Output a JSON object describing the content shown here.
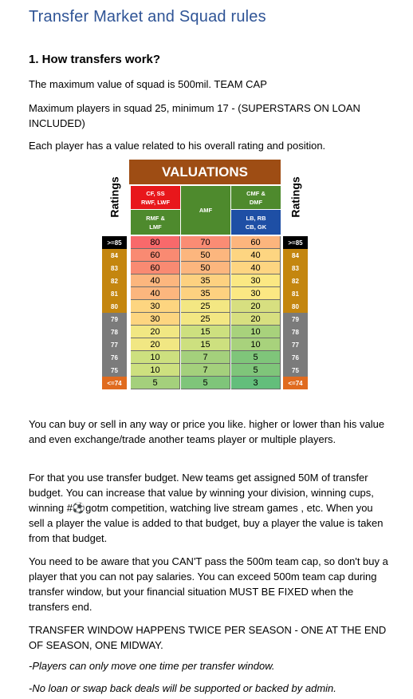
{
  "doc_title": "Transfer  Market and Squad rules",
  "section_heading": "1. How transfers work?",
  "paragraphs": {
    "cap": "The maximum value of squad is 500mil. TEAM CAP",
    "players": "Maximum players in squad 25,  minimum 17 - (SUPERSTARS ON LOAN INCLUDED)",
    "value_intro": "Each player has a value related to his overall rating and position.",
    "buy_sell": "You can buy or sell in any way or price you like. higher or lower than his value and even exchange/trade another teams player or multiple players.",
    "budget": "For that you use transfer budget. New teams get assigned 50M of transfer budget. You can increase that value by winning your division, winning cups, winning #⚽gotm competition,  watching live stream games , etc. When you sell a player the value is added to that budget, buy a player the value is taken from that budget.",
    "aware": "You need to be aware that you CAN'T pass the 500m  team cap, so don't buy a player that you can not pay salaries. You can exceed 500m team cap during transfer window, but your financial situation MUST BE FIXED when the transfers end.",
    "window": "TRANSFER WINDOW  HAPPENS TWICE PER SEASON - ONE AT THE END OF SEASON, ONE MIDWAY.",
    "once": "-Players can only move one time per transfer window.",
    "no_loan": "-No loan or swap back deals will be supported or backed by admin."
  },
  "valuations": {
    "title": "VALUATIONS",
    "ratings_label_left": "Ratings",
    "ratings_label_right": "Ratings",
    "col1_top": "CF, SS\nRWF, LWF",
    "col1_bottom": "RMF &\nLMF",
    "col2": "AMF",
    "col3_top": "CMF &\nDMF",
    "col3_bottom": "LB, RB\nCB, GK",
    "colors": {
      "band": "#9e4d14",
      "fwd": "#e8171b",
      "mid": "#4e8a2d",
      "def": "#1e4fa5"
    },
    "rows": [
      {
        "label": ">=85",
        "v1": "80",
        "v2": "70",
        "v3": "60",
        "label_bg": "#000000"
      },
      {
        "label": "84",
        "v1": "60",
        "v2": "50",
        "v3": "40",
        "label_bg": "#c4860f"
      },
      {
        "label": "83",
        "v1": "60",
        "v2": "50",
        "v3": "40",
        "label_bg": "#c4860f"
      },
      {
        "label": "82",
        "v1": "40",
        "v2": "35",
        "v3": "30",
        "label_bg": "#c4860f"
      },
      {
        "label": "81",
        "v1": "40",
        "v2": "35",
        "v3": "30",
        "label_bg": "#c4860f"
      },
      {
        "label": "80",
        "v1": "30",
        "v2": "25",
        "v3": "20",
        "label_bg": "#c4860f"
      },
      {
        "label": "79",
        "v1": "30",
        "v2": "25",
        "v3": "20",
        "label_bg": "#7b7b7b"
      },
      {
        "label": "78",
        "v1": "20",
        "v2": "15",
        "v3": "10",
        "label_bg": "#7b7b7b"
      },
      {
        "label": "77",
        "v1": "20",
        "v2": "15",
        "v3": "10",
        "label_bg": "#7b7b7b"
      },
      {
        "label": "76",
        "v1": "10",
        "v2": "7",
        "v3": "5",
        "label_bg": "#7b7b7b"
      },
      {
        "label": "75",
        "v1": "10",
        "v2": "7",
        "v3": "5",
        "label_bg": "#7b7b7b"
      },
      {
        "label": "<=74",
        "v1": "5",
        "v2": "5",
        "v3": "3",
        "label_bg": "#e06b1f"
      }
    ],
    "value_colors": [
      [
        "#f8696b",
        "#fa8c74",
        "#fcb57d"
      ],
      [
        "#f98a72",
        "#fcb67e",
        "#fdd581"
      ],
      [
        "#f98a72",
        "#fcb67e",
        "#fdd581"
      ],
      [
        "#fcb67e",
        "#fdd180",
        "#fbe883"
      ],
      [
        "#fcb67e",
        "#fdd180",
        "#fbe883"
      ],
      [
        "#fdd580",
        "#f3e783",
        "#d7df80"
      ],
      [
        "#fdd580",
        "#f3e783",
        "#d7df80"
      ],
      [
        "#f1e783",
        "#cde07f",
        "#a8d27c"
      ],
      [
        "#f1e783",
        "#cde07f",
        "#a8d27c"
      ],
      [
        "#cde07f",
        "#a4d07c",
        "#7fc57a"
      ],
      [
        "#cde07f",
        "#a4d07c",
        "#7fc57a"
      ],
      [
        "#a4d07c",
        "#7fc57a",
        "#63be7b"
      ]
    ]
  }
}
